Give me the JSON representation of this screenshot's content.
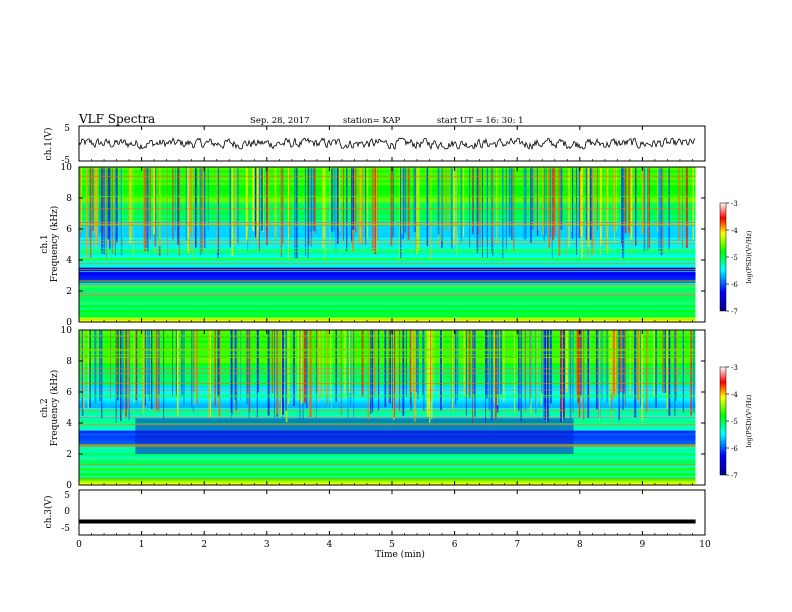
{
  "header": {
    "title": "VLF Spectra",
    "date": "Sep. 28, 2017",
    "station": "station= KAP",
    "start": "start  UT =   16: 30: 1"
  },
  "chart_data": [
    {
      "type": "line",
      "panel": "ch1-waveform",
      "ylabel": "ch.1(V)",
      "ylim": [
        -5,
        5
      ],
      "yticks": [
        "5",
        "-5"
      ],
      "x_range_min": [
        0,
        9.85
      ],
      "approx_amplitude_v": [
        -1.5,
        1.5
      ]
    },
    {
      "type": "heatmap",
      "panel": "ch1-spectrogram",
      "ylabel_line1": "ch.1",
      "ylabel_line2": "Frequency (kHz)",
      "ylim": [
        0,
        10
      ],
      "yticks": [
        "0",
        "2",
        "4",
        "6",
        "8",
        "10"
      ],
      "x_range_min": [
        0,
        9.85
      ],
      "colorbar": {
        "label": "log(PSD)(V²/Hz)",
        "range": [
          -7,
          -3
        ],
        "ticks": [
          "-3",
          "-4",
          "-5",
          "-6",
          "-7"
        ]
      }
    },
    {
      "type": "heatmap",
      "panel": "ch2-spectrogram",
      "ylabel_line1": "ch.2",
      "ylabel_line2": "Frequency (kHz)",
      "ylim": [
        0,
        10
      ],
      "yticks": [
        "0",
        "2",
        "4",
        "6",
        "8",
        "10"
      ],
      "x_range_min": [
        0,
        9.85
      ],
      "colorbar": {
        "label": "log(PSD)(V²/Hz)",
        "range": [
          -7,
          -3
        ],
        "ticks": [
          "-3",
          "-4",
          "-5",
          "-6",
          "-7"
        ]
      }
    },
    {
      "type": "line",
      "panel": "ch3-waveform",
      "ylabel": "ch.3(V)",
      "ylim": [
        -5,
        5
      ],
      "yticks": [
        "5",
        "0",
        "-5"
      ],
      "level_v": -2
    }
  ],
  "xaxis": {
    "label": "Time  (min)",
    "range": [
      0,
      10
    ],
    "ticks": [
      "0",
      "1",
      "2",
      "3",
      "4",
      "5",
      "6",
      "7",
      "8",
      "9",
      "10"
    ]
  },
  "colors": {
    "ink": "#000000",
    "background": "#ffffff"
  }
}
